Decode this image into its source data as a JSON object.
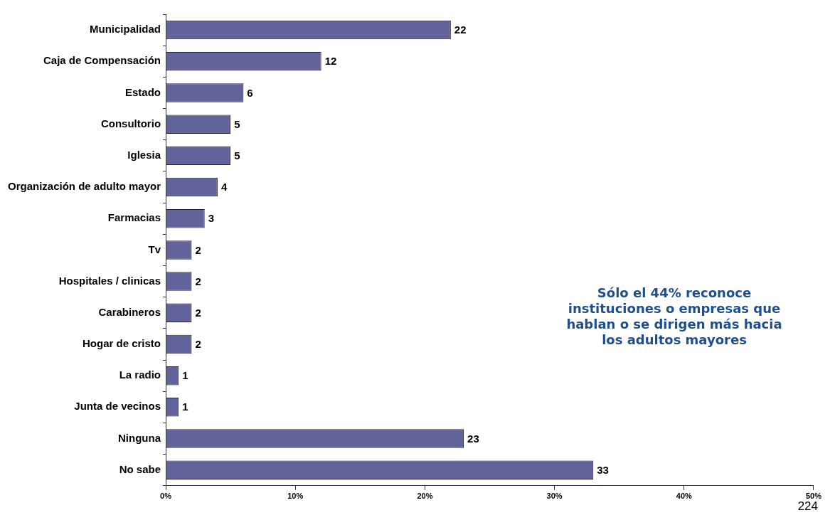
{
  "chart_data": {
    "type": "bar",
    "orientation": "horizontal",
    "categories": [
      "Municipalidad",
      "Caja de Compensación",
      "Estado",
      "Consultorio",
      "Iglesia",
      "Organización de adulto mayor",
      "Farmacias",
      "Tv",
      "Hospitales / clinicas",
      "Carabineros",
      "Hogar de cristo",
      "La radio",
      "Junta de vecinos",
      "Ninguna",
      "No sabe"
    ],
    "values": [
      22,
      12,
      6,
      5,
      5,
      4,
      3,
      2,
      2,
      2,
      2,
      1,
      1,
      23,
      33
    ],
    "color": "#63639c",
    "xlim": [
      0,
      50
    ],
    "xticks": [
      {
        "value": 0,
        "label": "0%"
      },
      {
        "value": 10,
        "label": "10%"
      },
      {
        "value": 20,
        "label": "20%"
      },
      {
        "value": 30,
        "label": "30%"
      },
      {
        "value": 40,
        "label": "40%"
      },
      {
        "value": 50,
        "label": "50%"
      }
    ],
    "data_labels": true,
    "grid": false,
    "legend": false,
    "annotations": [
      "Sólo el 44% reconoce\ninstituciones o empresas que\nhablan o se dirigen más hacia\nlos adultos mayores",
      "224"
    ]
  }
}
